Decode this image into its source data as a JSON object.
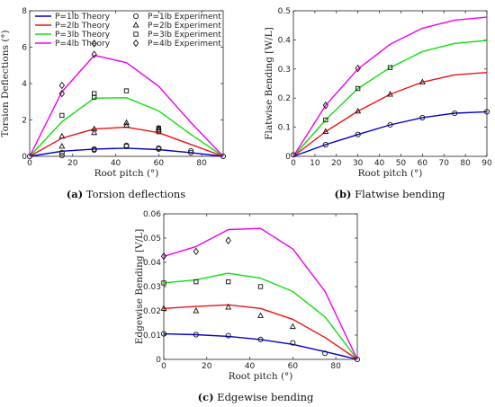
{
  "figure": {
    "captions": [
      {
        "letter": "(a)",
        "text": " Torsion deflections"
      },
      {
        "letter": "(b)",
        "text": " Flatwise bending"
      },
      {
        "letter": "(c)",
        "text": " Edgewise bending"
      }
    ]
  },
  "chart_data": [
    {
      "id": "a",
      "type": "line",
      "xlabel": "Root pitch (°)",
      "ylabel": "Torsion Deflections (°)",
      "xlim": [
        0,
        90
      ],
      "ylim": [
        0,
        8
      ],
      "xticks": [
        0,
        20,
        40,
        60,
        80
      ],
      "yticks": [
        0,
        2,
        4,
        6,
        8
      ],
      "grid": false,
      "legend": {
        "placement": "top",
        "entries": [
          {
            "label": "P=1lb Theory",
            "kind": "line",
            "color": "#0000cc"
          },
          {
            "label": "P=2lb Theory",
            "kind": "line",
            "color": "#ee1111"
          },
          {
            "label": "P=3lb Theory",
            "kind": "line",
            "color": "#11dd11"
          },
          {
            "label": "P=4lb Theory",
            "kind": "line",
            "color": "#ee00ee"
          },
          {
            "label": "P=1lb Experiment",
            "kind": "marker",
            "marker": "circle"
          },
          {
            "label": "P=2lb Experiment",
            "kind": "marker",
            "marker": "triangle"
          },
          {
            "label": "P=3lb Experiment",
            "kind": "marker",
            "marker": "square"
          },
          {
            "label": "P=4lb Experiment",
            "kind": "marker",
            "marker": "diamond"
          }
        ]
      },
      "series": [
        {
          "name": "P=1lb Theory",
          "color": "#0000cc",
          "x": [
            0,
            15,
            30,
            45,
            60,
            75,
            90
          ],
          "y": [
            0,
            0.28,
            0.4,
            0.45,
            0.37,
            0.2,
            0
          ]
        },
        {
          "name": "P=2lb Theory",
          "color": "#ee1111",
          "x": [
            0,
            15,
            30,
            45,
            60,
            75,
            90
          ],
          "y": [
            0,
            1.0,
            1.5,
            1.6,
            1.3,
            0.65,
            0
          ]
        },
        {
          "name": "P=3lb Theory",
          "color": "#11dd11",
          "x": [
            0,
            15,
            30,
            45,
            60,
            75,
            90
          ],
          "y": [
            0,
            1.9,
            3.2,
            3.22,
            2.5,
            1.2,
            0
          ]
        },
        {
          "name": "P=4lb Theory",
          "color": "#ee00ee",
          "x": [
            0,
            15,
            30,
            45,
            60,
            75,
            90
          ],
          "y": [
            0,
            3.55,
            5.55,
            5.15,
            3.85,
            1.85,
            0
          ]
        }
      ],
      "experiments": [
        {
          "name": "P=1lb Experiment",
          "marker": "circle",
          "x": [
            0,
            15,
            15,
            30,
            30,
            45,
            45,
            60,
            60,
            75,
            75,
            90
          ],
          "y": [
            0,
            0.05,
            0.2,
            0.35,
            0.4,
            0.55,
            0.6,
            0.4,
            0.45,
            0.2,
            0.3,
            0
          ]
        },
        {
          "name": "P=2lb Experiment",
          "marker": "triangle",
          "x": [
            15,
            15,
            30,
            30,
            45,
            45,
            60,
            60
          ],
          "y": [
            0.55,
            1.1,
            1.3,
            1.5,
            1.7,
            1.85,
            1.45,
            1.55
          ]
        },
        {
          "name": "P=3lb Experiment",
          "marker": "square",
          "x": [
            15,
            30,
            30,
            45,
            60,
            60
          ],
          "y": [
            2.25,
            3.25,
            3.45,
            3.6,
            1.55,
            1.35
          ]
        },
        {
          "name": "P=4lb Experiment",
          "marker": "diamond",
          "x": [
            15,
            15,
            30,
            30
          ],
          "y": [
            3.45,
            3.9,
            5.6,
            6.2
          ]
        }
      ]
    },
    {
      "id": "b",
      "type": "line",
      "xlabel": "Root pitch (°)",
      "ylabel": "Flatwise Bending [W/L]",
      "xlim": [
        0,
        90
      ],
      "ylim": [
        0,
        0.5
      ],
      "xticks": [
        0,
        10,
        20,
        30,
        40,
        50,
        60,
        70,
        80,
        90
      ],
      "yticks": [
        0,
        0.1,
        0.2,
        0.3,
        0.4,
        0.5
      ],
      "grid": false,
      "series": [
        {
          "name": "P=1lb Theory",
          "color": "#0000cc",
          "x": [
            0,
            15,
            30,
            45,
            60,
            75,
            90
          ],
          "y": [
            0,
            0.04,
            0.075,
            0.108,
            0.133,
            0.148,
            0.153
          ]
        },
        {
          "name": "P=2lb Theory",
          "color": "#ee1111",
          "x": [
            0,
            15,
            30,
            45,
            60,
            75,
            90
          ],
          "y": [
            0,
            0.085,
            0.155,
            0.213,
            0.255,
            0.28,
            0.288
          ]
        },
        {
          "name": "P=3lb Theory",
          "color": "#11dd11",
          "x": [
            0,
            15,
            30,
            45,
            60,
            75,
            90
          ],
          "y": [
            0,
            0.125,
            0.233,
            0.305,
            0.36,
            0.388,
            0.398
          ]
        },
        {
          "name": "P=4lb Theory",
          "color": "#ee00ee",
          "x": [
            0,
            15,
            30,
            45,
            60,
            75,
            90
          ],
          "y": [
            0,
            0.175,
            0.3,
            0.385,
            0.44,
            0.468,
            0.478
          ]
        }
      ],
      "experiments": [
        {
          "name": "P=1lb Experiment",
          "marker": "circle",
          "x": [
            0,
            15,
            30,
            45,
            60,
            75,
            90
          ],
          "y": [
            0.005,
            0.04,
            0.075,
            0.108,
            0.133,
            0.148,
            0.153
          ]
        },
        {
          "name": "P=2lb Experiment",
          "marker": "triangle",
          "x": [
            15,
            30,
            45,
            60
          ],
          "y": [
            0.085,
            0.155,
            0.213,
            0.255
          ]
        },
        {
          "name": "P=3lb Experiment",
          "marker": "square",
          "x": [
            15,
            30,
            45
          ],
          "y": [
            0.125,
            0.233,
            0.305
          ]
        },
        {
          "name": "P=4lb Experiment",
          "marker": "diamond",
          "x": [
            15,
            30
          ],
          "y": [
            0.175,
            0.302
          ]
        }
      ]
    },
    {
      "id": "c",
      "type": "line",
      "xlabel": "Root pitch (°)",
      "ylabel": "Edgewise Bending [V/L]",
      "xlim": [
        0,
        90
      ],
      "ylim": [
        0,
        0.06
      ],
      "xticks": [
        0,
        20,
        40,
        60,
        80
      ],
      "yticks": [
        0,
        0.01,
        0.02,
        0.03,
        0.04,
        0.05,
        0.06
      ],
      "ytickLabels": [
        "0",
        "0.01",
        "0.02",
        "0.03",
        "0.04",
        "0.05",
        "0.06"
      ],
      "grid": false,
      "series": [
        {
          "name": "P=1lb Theory",
          "color": "#0000cc",
          "x": [
            0,
            15,
            30,
            45,
            60,
            75,
            90
          ],
          "y": [
            0.0105,
            0.0102,
            0.0095,
            0.0082,
            0.0062,
            0.0032,
            0
          ]
        },
        {
          "name": "P=2lb Theory",
          "color": "#ee1111",
          "x": [
            0,
            15,
            30,
            45,
            60,
            75,
            90
          ],
          "y": [
            0.021,
            0.0218,
            0.0225,
            0.021,
            0.0165,
            0.009,
            0
          ]
        },
        {
          "name": "P=3lb Theory",
          "color": "#11dd11",
          "x": [
            0,
            15,
            30,
            45,
            60,
            75,
            90
          ],
          "y": [
            0.0315,
            0.0328,
            0.0355,
            0.0335,
            0.028,
            0.0175,
            0
          ]
        },
        {
          "name": "P=4lb Theory",
          "color": "#ee00ee",
          "x": [
            0,
            15,
            30,
            45,
            60,
            75,
            90
          ],
          "y": [
            0.0425,
            0.0465,
            0.0535,
            0.054,
            0.0455,
            0.028,
            0
          ]
        }
      ],
      "experiments": [
        {
          "name": "P=1lb Experiment",
          "marker": "circle",
          "x": [
            0,
            15,
            30,
            45,
            60,
            75,
            90
          ],
          "y": [
            0.0105,
            0.0102,
            0.0098,
            0.0082,
            0.0068,
            0.0025,
            0
          ]
        },
        {
          "name": "P=2lb Experiment",
          "marker": "triangle",
          "x": [
            0,
            15,
            30,
            45,
            60
          ],
          "y": [
            0.021,
            0.02,
            0.0215,
            0.018,
            0.0135
          ]
        },
        {
          "name": "P=3lb Experiment",
          "marker": "square",
          "x": [
            0,
            15,
            30,
            45
          ],
          "y": [
            0.0315,
            0.032,
            0.032,
            0.03
          ]
        },
        {
          "name": "P=4lb Experiment",
          "marker": "diamond",
          "x": [
            0,
            15,
            30
          ],
          "y": [
            0.0425,
            0.0445,
            0.049
          ]
        }
      ]
    }
  ]
}
